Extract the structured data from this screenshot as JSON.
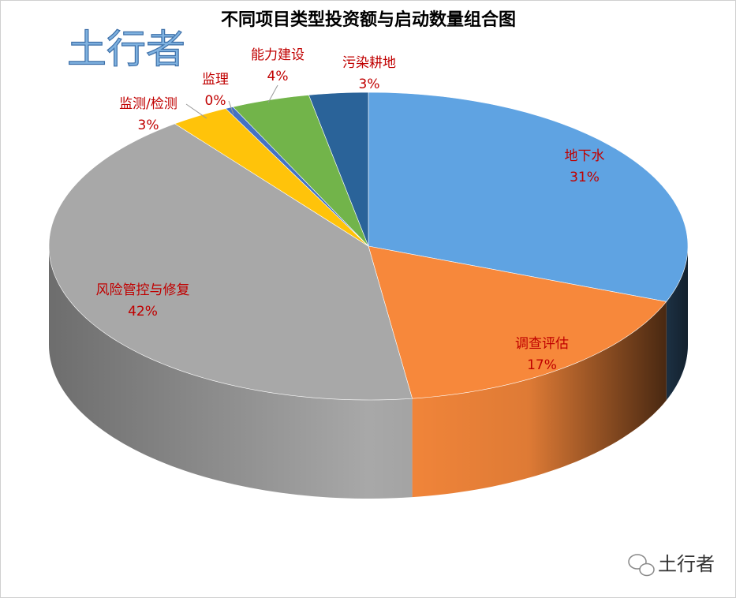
{
  "chart_data": {
    "type": "pie3d",
    "title": "不同项目类型投资额与启动数量组合图",
    "categories": [
      "地下水",
      "调查评估",
      "风险管控与修复",
      "监测/检测",
      "监理",
      "能力建设",
      "污染耕地"
    ],
    "values": [
      31,
      17,
      42,
      3,
      0.4,
      4,
      3
    ],
    "value_labels": [
      "31%",
      "17%",
      "42%",
      "3%",
      "0%",
      "4%",
      "3%"
    ],
    "colors": [
      "#5fa3e2",
      "#f7883b",
      "#a8a8a8",
      "#ffc30a",
      "#4472c4",
      "#72b44a",
      "#2a6399"
    ]
  },
  "watermark": "土行者",
  "footer": "土行者"
}
